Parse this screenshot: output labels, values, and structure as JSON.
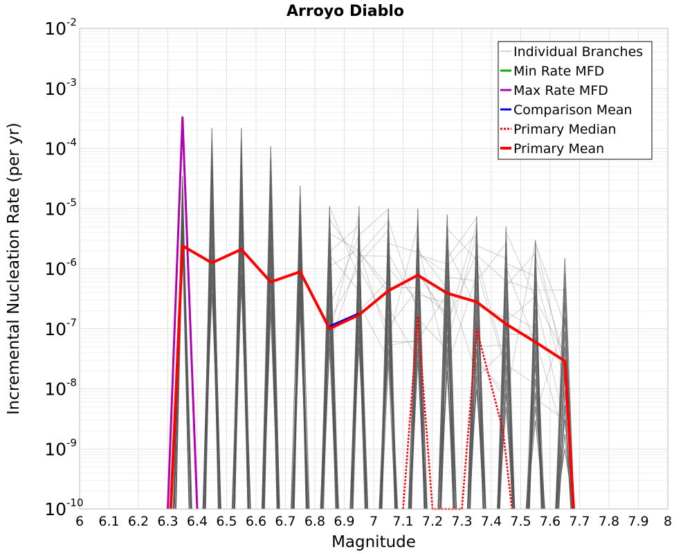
{
  "chart_data": {
    "type": "line",
    "title": "Arroyo Diablo",
    "xlabel": "Magnitude",
    "ylabel": "Incremental Nucleation Rate (per yr)",
    "x_scale": "linear",
    "y_scale": "log",
    "xlim": [
      6,
      8
    ],
    "ylim": [
      1e-10,
      0.01
    ],
    "x_ticks": [
      "6",
      "6.1",
      "6.2",
      "6.3",
      "6.4",
      "6.5",
      "6.6",
      "6.7",
      "6.8",
      "6.9",
      "7",
      "7.1",
      "7.2",
      "7.3",
      "7.4",
      "7.5",
      "7.6",
      "7.7",
      "7.8",
      "7.9",
      "8"
    ],
    "y_ticks": [
      {
        "base": "10",
        "exp": "-10",
        "value": 1e-10
      },
      {
        "base": "10",
        "exp": "-9",
        "value": 1e-09
      },
      {
        "base": "10",
        "exp": "-8",
        "value": 1e-08
      },
      {
        "base": "10",
        "exp": "-7",
        "value": 1e-07
      },
      {
        "base": "10",
        "exp": "-6",
        "value": 1e-06
      },
      {
        "base": "10",
        "exp": "-5",
        "value": 1e-05
      },
      {
        "base": "10",
        "exp": "-4",
        "value": 0.0001
      },
      {
        "base": "10",
        "exp": "-3",
        "value": 0.001
      },
      {
        "base": "10",
        "exp": "-2",
        "value": 0.01
      }
    ],
    "grid": true,
    "legend_position": "top-right",
    "colors": {
      "individual": "#555555",
      "min": "#00b000",
      "max": "#b000b0",
      "comparison_mean": "#0000e0",
      "primary_median": "#ff0000",
      "primary_mean": "#ff0000",
      "grid_major": "#e0e0e0",
      "grid_minor": "#efefef"
    },
    "series": [
      {
        "name": "Individual Branches",
        "style": "thin-gray-bundle",
        "spike_peaks": [
          {
            "x": 6.35,
            "ymax": 3.5e-05,
            "ymin": 3e-06
          },
          {
            "x": 6.45,
            "ymax": 0.00022,
            "ymin": 4e-07
          },
          {
            "x": 6.55,
            "ymax": 0.00022,
            "ymin": 5e-07
          },
          {
            "x": 6.65,
            "ymax": 0.00011,
            "ymin": 2e-07
          },
          {
            "x": 6.75,
            "ymax": 2.4e-05,
            "ymin": 2e-07
          },
          {
            "x": 6.85,
            "ymax": 1.1e-05,
            "ymin": 5e-08
          },
          {
            "x": 6.95,
            "ymax": 1.1e-05,
            "ymin": 5e-08
          },
          {
            "x": 7.05,
            "ymax": 1e-05,
            "ymin": 3e-08
          },
          {
            "x": 7.15,
            "ymax": 1e-05,
            "ymin": 3e-08
          },
          {
            "x": 7.25,
            "ymax": 8e-06,
            "ymin": 2e-08
          },
          {
            "x": 7.35,
            "ymax": 7.5e-06,
            "ymin": 1e-08
          },
          {
            "x": 7.45,
            "ymax": 5e-06,
            "ymin": 5e-09
          },
          {
            "x": 7.55,
            "ymax": 3e-06,
            "ymin": 3e-09
          },
          {
            "x": 7.65,
            "ymax": 1.5e-06,
            "ymin": 1e-09
          }
        ]
      },
      {
        "name": "Min Rate MFD",
        "x": [
          6.35
        ],
        "y": [
          3e-06
        ]
      },
      {
        "name": "Max Rate MFD",
        "x": [
          6.3,
          6.35,
          6.4
        ],
        "y": [
          1e-10,
          0.00033,
          1e-10
        ]
      },
      {
        "name": "Comparison Mean",
        "x": [
          6.85,
          6.95
        ],
        "y": [
          1.1e-07,
          1.8e-07
        ]
      },
      {
        "name": "Primary Median",
        "x": [
          7.1,
          7.15,
          7.2,
          7.3,
          7.35,
          7.44,
          7.47
        ],
        "y": [
          1e-10,
          1.6e-07,
          1e-10,
          1e-10,
          1e-07,
          2e-09,
          1e-10
        ]
      },
      {
        "name": "Primary Mean",
        "x": [
          6.31,
          6.35,
          6.45,
          6.55,
          6.65,
          6.75,
          6.85,
          6.95,
          7.05,
          7.15,
          7.25,
          7.35,
          7.45,
          7.55,
          7.65,
          7.68
        ],
        "y": [
          1e-10,
          2.4e-06,
          1.25e-06,
          2.1e-06,
          6e-07,
          8.9e-07,
          1e-07,
          1.7e-07,
          4.3e-07,
          7.8e-07,
          3.9e-07,
          2.8e-07,
          1.2e-07,
          6e-08,
          2.9e-08,
          1e-10
        ]
      }
    ]
  }
}
